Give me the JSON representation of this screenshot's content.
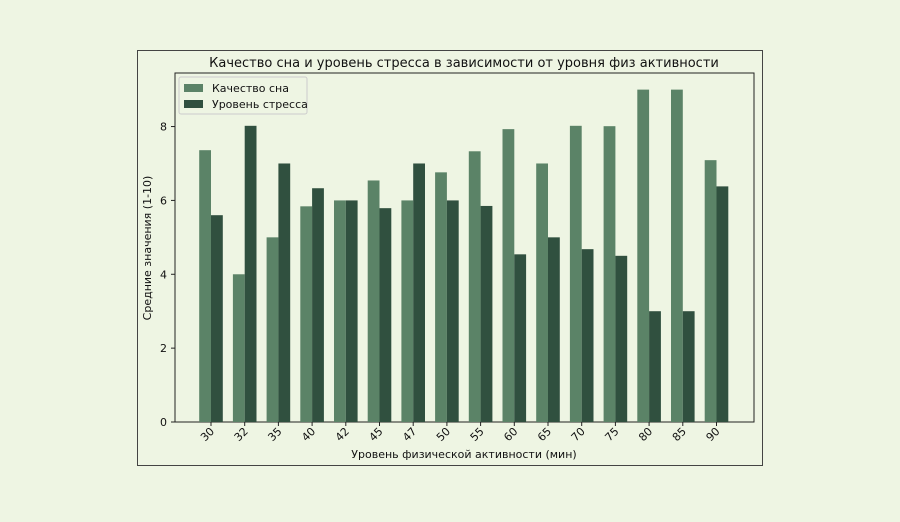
{
  "chart_data": {
    "type": "bar",
    "title": "Качество сна и уровень стресса в зависимости от уровня физ активности",
    "xlabel": "Уровень физической активности (мин)",
    "ylabel": "Средние значения (1-10)",
    "ylim": [
      0,
      9.45
    ],
    "yticks": [
      0,
      2,
      4,
      6,
      8
    ],
    "legend_position": "top-left",
    "categories": [
      "30",
      "32",
      "35",
      "40",
      "42",
      "45",
      "47",
      "50",
      "55",
      "60",
      "65",
      "70",
      "75",
      "80",
      "85",
      "90"
    ],
    "series": [
      {
        "name": "Качество сна",
        "color": "#5b8367",
        "values": [
          7.36,
          4.0,
          5.0,
          5.84,
          6.0,
          6.54,
          6.0,
          6.76,
          7.33,
          7.93,
          7.0,
          8.02,
          8.01,
          9.0,
          9.0,
          7.09
        ]
      },
      {
        "name": "Уровень стресса",
        "color": "#30503f",
        "values": [
          5.6,
          8.02,
          7.0,
          6.33,
          6.0,
          5.79,
          7.0,
          6.0,
          5.85,
          4.54,
          5.0,
          4.68,
          4.5,
          3.0,
          3.0,
          6.38
        ]
      }
    ]
  }
}
